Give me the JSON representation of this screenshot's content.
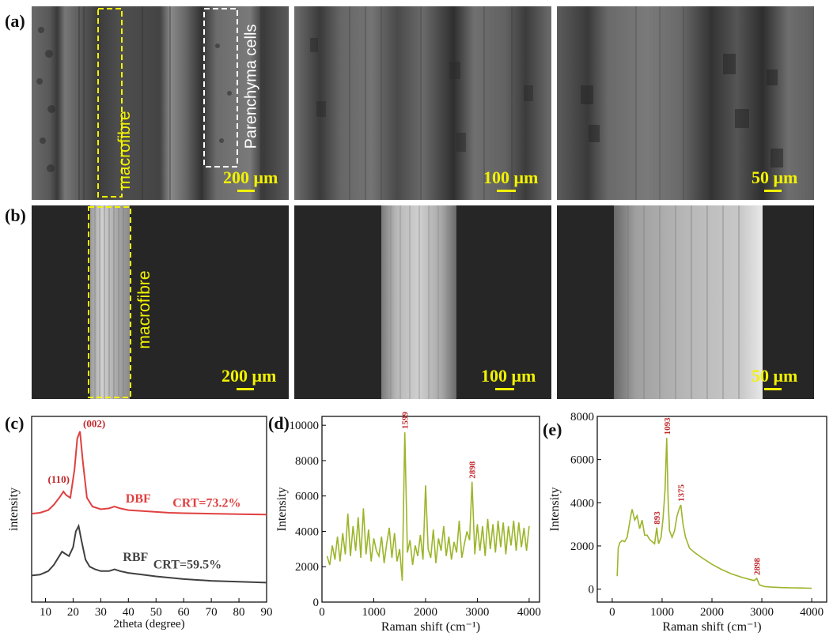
{
  "panels": {
    "a": "(a)",
    "b": "(b)",
    "c": "(c)",
    "d": "(d)",
    "e": "(e)"
  },
  "sem_a": {
    "label_macrofibre": "macrofibre",
    "label_parenchyma": "Parenchyma cells",
    "scale1": "200 μm",
    "scale2": "100 μm",
    "scale3": "50 μm"
  },
  "sem_b": {
    "label_macrofibre": "macrofibre",
    "scale1": "200 μm",
    "scale2": "100 μm",
    "scale3": "50 μm"
  },
  "colors": {
    "dbf": "#e04040",
    "rbf": "#404040",
    "raman": "#9cb52a",
    "peak_label": "#c0282c",
    "scale": "#f2f200"
  },
  "chart_data": [
    {
      "id": "c",
      "type": "line",
      "xlabel": "2theta (degree)",
      "ylabel": "intensity",
      "xlim": [
        5,
        90
      ],
      "xticks": [
        10,
        20,
        30,
        40,
        50,
        60,
        70,
        80,
        90
      ],
      "yticks_shown": false,
      "series": [
        {
          "name": "DBF",
          "annotation": "CRT=73.2%",
          "x": [
            5,
            8,
            11,
            13,
            15,
            16.5,
            17.5,
            19,
            20.5,
            21.5,
            22.5,
            23.5,
            25,
            27,
            30,
            33,
            35,
            37,
            40,
            45,
            50,
            55,
            60,
            70,
            80,
            90
          ],
          "y": [
            100,
            101,
            104,
            110,
            118,
            125,
            121,
            118,
            150,
            185,
            193,
            160,
            118,
            108,
            105,
            106,
            108,
            106,
            104,
            103,
            102,
            101,
            100.5,
            100,
            99.5,
            99
          ]
        },
        {
          "name": "RBF",
          "annotation": "CRT=59.5%",
          "x": [
            5,
            8,
            11,
            13,
            15,
            16,
            17,
            18.5,
            20,
            21,
            22,
            23,
            24.5,
            26,
            28,
            30,
            33,
            35,
            37,
            40,
            45,
            50,
            60,
            70,
            80,
            90
          ],
          "y": [
            30,
            31,
            35,
            42,
            52,
            57,
            55,
            52,
            62,
            80,
            86,
            70,
            48,
            40,
            37,
            35,
            35,
            37,
            35,
            33,
            31,
            29,
            26,
            24,
            23,
            22
          ]
        }
      ],
      "peak_labels": [
        {
          "text": "(110)",
          "x": 16.5
        },
        {
          "text": "(002)",
          "x": 22.5
        }
      ]
    },
    {
      "id": "d",
      "type": "line",
      "xlabel": "Raman shift (cm⁻¹)",
      "ylabel": "Intensity",
      "xlim": [
        0,
        4200
      ],
      "ylim": [
        0,
        10500
      ],
      "xticks": [
        0,
        1000,
        2000,
        3000,
        4000
      ],
      "yticks": [
        0,
        2000,
        4000,
        6000,
        8000,
        10000
      ],
      "series": [
        {
          "name": "",
          "x": [
            100,
            150,
            200,
            250,
            300,
            350,
            400,
            450,
            500,
            550,
            600,
            650,
            700,
            750,
            800,
            850,
            900,
            950,
            1000,
            1050,
            1100,
            1150,
            1200,
            1250,
            1300,
            1350,
            1400,
            1450,
            1500,
            1550,
            1599,
            1650,
            1700,
            1750,
            1800,
            1850,
            1900,
            1950,
            2000,
            2050,
            2100,
            2150,
            2200,
            2250,
            2300,
            2350,
            2400,
            2450,
            2500,
            2550,
            2600,
            2650,
            2700,
            2750,
            2800,
            2850,
            2898,
            2950,
            3000,
            3050,
            3100,
            3150,
            3200,
            3250,
            3300,
            3350,
            3400,
            3450,
            3500,
            3550,
            3600,
            3650,
            3700,
            3750,
            3800,
            3850,
            3900,
            3950,
            4000
          ],
          "y": [
            2600,
            2100,
            3200,
            2400,
            3700,
            2300,
            3900,
            2700,
            5000,
            2600,
            4300,
            2900,
            4800,
            2500,
            5300,
            2700,
            4100,
            2300,
            3600,
            2900,
            2600,
            3700,
            2200,
            3300,
            4200,
            2500,
            3900,
            2300,
            3000,
            1200,
            9600,
            2800,
            3500,
            2100,
            3200,
            2600,
            3800,
            2400,
            6600,
            3000,
            2500,
            4100,
            2200,
            3600,
            2900,
            4300,
            2600,
            3700,
            2400,
            3400,
            2800,
            4600,
            2500,
            3300,
            4000,
            3500,
            6800,
            2700,
            4400,
            2900,
            4300,
            2600,
            4700,
            3000,
            4400,
            2800,
            4600,
            3100,
            4500,
            2700,
            4300,
            3200,
            4600,
            2900,
            4500,
            3100,
            4200,
            2900,
            4300
          ]
        }
      ],
      "peak_labels": [
        {
          "text": "1599",
          "x": 1599,
          "y": 9600
        },
        {
          "text": "2898",
          "x": 2898,
          "y": 6800
        }
      ]
    },
    {
      "id": "e",
      "type": "line",
      "xlabel": "Raman shift (cm⁻¹)",
      "ylabel": "Intensity",
      "xlim": [
        -300,
        4300
      ],
      "ylim": [
        -600,
        8000
      ],
      "xticks": [
        0,
        1000,
        2000,
        3000,
        4000
      ],
      "yticks": [
        0,
        2000,
        4000,
        6000,
        8000
      ],
      "series": [
        {
          "name": "",
          "x": [
            100,
            120,
            150,
            200,
            250,
            300,
            350,
            380,
            400,
            450,
            500,
            550,
            600,
            650,
            700,
            750,
            800,
            850,
            893,
            930,
            980,
            1020,
            1060,
            1093,
            1120,
            1150,
            1200,
            1250,
            1300,
            1340,
            1375,
            1420,
            1470,
            1550,
            1650,
            1800,
            2000,
            2200,
            2400,
            2600,
            2750,
            2850,
            2898,
            2950,
            3050,
            3200,
            3400,
            3600,
            3800,
            4000
          ],
          "y": [
            600,
            1900,
            2150,
            2250,
            2200,
            2400,
            3100,
            3500,
            3700,
            3200,
            3400,
            2800,
            3200,
            2500,
            2500,
            2300,
            2200,
            2100,
            2850,
            2100,
            2400,
            3300,
            4600,
            7000,
            4200,
            2700,
            2400,
            2700,
            3400,
            3700,
            3900,
            3000,
            2400,
            1900,
            1700,
            1450,
            1150,
            900,
            700,
            550,
            450,
            400,
            500,
            200,
            120,
            90,
            70,
            60,
            50,
            40
          ]
        }
      ],
      "peak_labels": [
        {
          "text": "893",
          "x": 893,
          "y": 2850
        },
        {
          "text": "1093",
          "x": 1093,
          "y": 7000
        },
        {
          "text": "1375",
          "x": 1375,
          "y": 3900
        },
        {
          "text": "2898",
          "x": 2898,
          "y": 500
        }
      ]
    }
  ]
}
